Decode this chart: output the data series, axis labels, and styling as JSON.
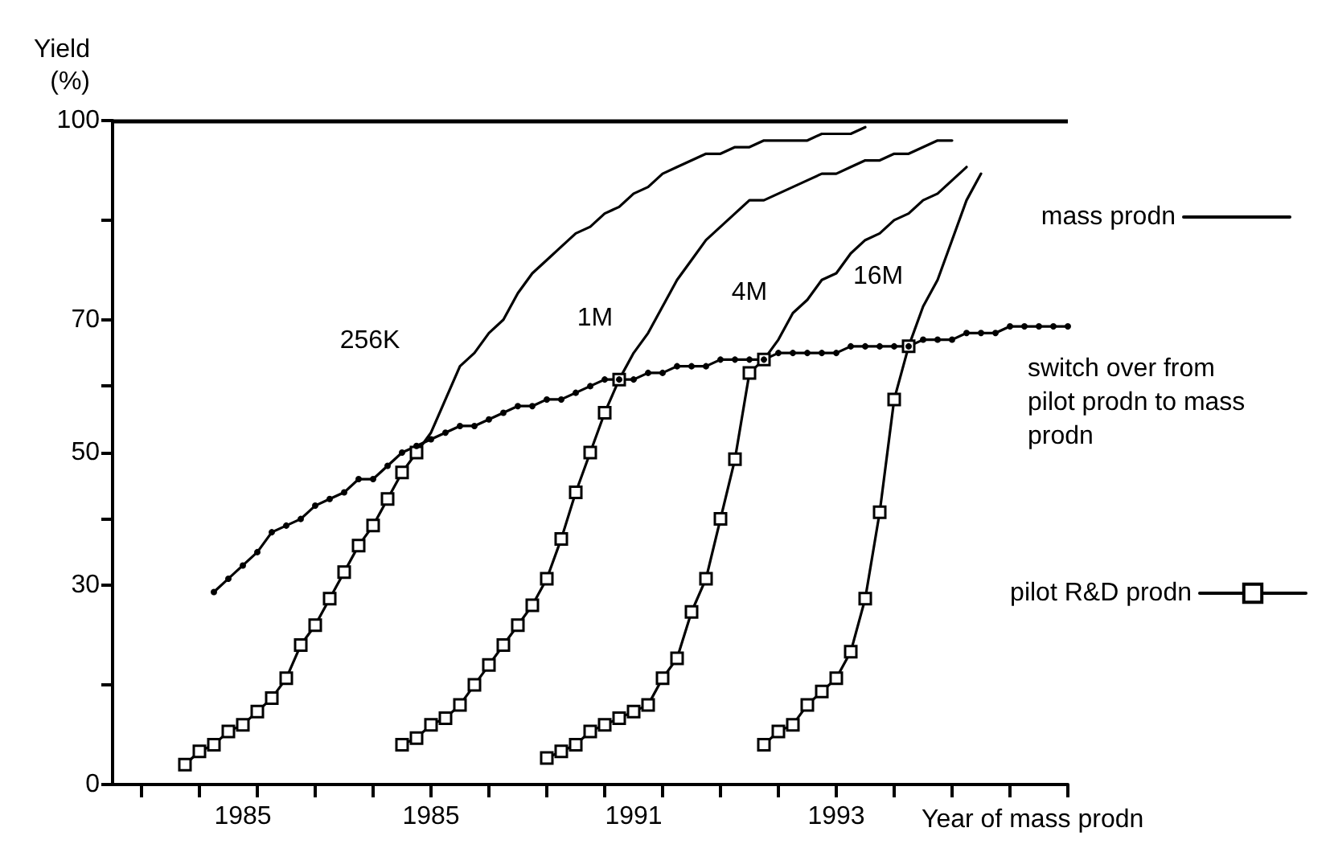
{
  "chart_data": {
    "type": "line",
    "ylabel": "Yield (%)",
    "xlabel": "Year of mass prodn",
    "legend": "right",
    "categories": [
      null,
      null,
      null,
      null,
      null,
      null,
      null,
      null,
      null,
      "1985",
      null,
      null,
      null,
      null,
      null,
      null,
      null,
      null,
      null,
      null,
      null,
      null,
      "1985",
      null,
      null,
      null,
      null,
      null,
      null,
      null,
      null,
      null,
      null,
      null,
      null,
      null,
      "1991",
      null,
      null,
      null,
      null,
      null,
      null,
      null,
      null,
      null,
      null,
      null,
      null,
      null,
      "1993",
      null,
      null,
      null,
      null,
      null,
      null,
      null,
      null,
      null,
      null,
      null,
      null,
      null,
      null,
      null,
      null
    ],
    "ylim": [
      0,
      100
    ],
    "yticks": [
      0,
      {
        "value": 15,
        "label": null
      },
      30,
      {
        "value": 40,
        "label": null
      },
      50,
      {
        "value": 60,
        "label": null
      },
      70,
      {
        "value": 85,
        "label": null
      },
      100
    ],
    "ref_lines": [
      {
        "axis": "y",
        "value": 100
      }
    ],
    "annotations": [
      "256K",
      "1M",
      "4M",
      "16M"
    ],
    "series": [
      {
        "name": "mass prodn",
        "color": "#000000",
        "marker": "none",
        "values": [
          null,
          null,
          null,
          null,
          null,
          null,
          null,
          null,
          null,
          null,
          null,
          null,
          null,
          null,
          null,
          null,
          null,
          null,
          null,
          null,
          null,
          50,
          53,
          58,
          63,
          65,
          68,
          70,
          74,
          77,
          79,
          81,
          83,
          84,
          86,
          87,
          89,
          90,
          92,
          93,
          94,
          95,
          95,
          96,
          96,
          97,
          97,
          97,
          97,
          98,
          98,
          98,
          99,
          null,
          null,
          null,
          null,
          null,
          null,
          null,
          null,
          null,
          null,
          null,
          null,
          null,
          null
        ]
      },
      {
        "color": "#000000",
        "marker": "none",
        "values": [
          null,
          null,
          null,
          null,
          null,
          null,
          null,
          null,
          null,
          null,
          null,
          null,
          null,
          null,
          null,
          null,
          null,
          null,
          null,
          null,
          null,
          null,
          null,
          null,
          null,
          null,
          null,
          null,
          null,
          null,
          null,
          null,
          null,
          null,
          null,
          61,
          65,
          68,
          72,
          76,
          79,
          82,
          84,
          86,
          88,
          88,
          89,
          90,
          91,
          92,
          92,
          93,
          94,
          94,
          95,
          95,
          96,
          97,
          97,
          null,
          null,
          null,
          null,
          null,
          null,
          null,
          null
        ]
      },
      {
        "color": "#000000",
        "marker": "none",
        "values": [
          null,
          null,
          null,
          null,
          null,
          null,
          null,
          null,
          null,
          null,
          null,
          null,
          null,
          null,
          null,
          null,
          null,
          null,
          null,
          null,
          null,
          null,
          null,
          null,
          null,
          null,
          null,
          null,
          null,
          null,
          null,
          null,
          null,
          null,
          null,
          null,
          null,
          null,
          null,
          null,
          null,
          null,
          null,
          null,
          null,
          64,
          67,
          71,
          73,
          76,
          77,
          80,
          82,
          83,
          85,
          86,
          88,
          89,
          91,
          93,
          null,
          null,
          null,
          null,
          null,
          null,
          null
        ]
      },
      {
        "color": "#000000",
        "marker": "none",
        "values": [
          null,
          null,
          null,
          null,
          null,
          null,
          null,
          null,
          null,
          null,
          null,
          null,
          null,
          null,
          null,
          null,
          null,
          null,
          null,
          null,
          null,
          null,
          null,
          null,
          null,
          null,
          null,
          null,
          null,
          null,
          null,
          null,
          null,
          null,
          null,
          null,
          null,
          null,
          null,
          null,
          null,
          null,
          null,
          null,
          null,
          null,
          null,
          null,
          null,
          null,
          null,
          null,
          null,
          null,
          null,
          66,
          72,
          76,
          82,
          88,
          92,
          null,
          null,
          null,
          null,
          null,
          null
        ]
      },
      {
        "name": "pilot R&D prodn",
        "color": "#000000",
        "marker": "square",
        "values": [
          null,
          null,
          null,
          null,
          null,
          3,
          5,
          6,
          8,
          9,
          11,
          13,
          16,
          21,
          24,
          28,
          32,
          36,
          39,
          43,
          47,
          50,
          null,
          null,
          null,
          null,
          null,
          null,
          null,
          null,
          null,
          null,
          null,
          null,
          null,
          null,
          null,
          null,
          null,
          null,
          null,
          null,
          null,
          null,
          null,
          null,
          null,
          null,
          null,
          null,
          null,
          null,
          null,
          null,
          null,
          null,
          null,
          null,
          null,
          null,
          null,
          null,
          null,
          null,
          null,
          null,
          null
        ]
      },
      {
        "color": "#000000",
        "marker": "square",
        "values": [
          null,
          null,
          null,
          null,
          null,
          null,
          null,
          null,
          null,
          null,
          null,
          null,
          null,
          null,
          null,
          null,
          null,
          null,
          null,
          null,
          6,
          7,
          9,
          10,
          12,
          15,
          18,
          21,
          24,
          27,
          31,
          37,
          44,
          50,
          56,
          61,
          null,
          null,
          null,
          null,
          null,
          null,
          null,
          null,
          null,
          null,
          null,
          null,
          null,
          null,
          null,
          null,
          null,
          null,
          null,
          null,
          null,
          null,
          null,
          null,
          null,
          null,
          null,
          null,
          null,
          null,
          null
        ]
      },
      {
        "color": "#000000",
        "marker": "square",
        "values": [
          null,
          null,
          null,
          null,
          null,
          null,
          null,
          null,
          null,
          null,
          null,
          null,
          null,
          null,
          null,
          null,
          null,
          null,
          null,
          null,
          null,
          null,
          null,
          null,
          null,
          null,
          null,
          null,
          null,
          null,
          4,
          5,
          6,
          8,
          9,
          10,
          11,
          12,
          16,
          19,
          26,
          31,
          40,
          49,
          62,
          64,
          null,
          null,
          null,
          null,
          null,
          null,
          null,
          null,
          null,
          null,
          null,
          null,
          null,
          null,
          null,
          null,
          null,
          null,
          null,
          null,
          null
        ]
      },
      {
        "color": "#000000",
        "marker": "square",
        "values": [
          null,
          null,
          null,
          null,
          null,
          null,
          null,
          null,
          null,
          null,
          null,
          null,
          null,
          null,
          null,
          null,
          null,
          null,
          null,
          null,
          null,
          null,
          null,
          null,
          null,
          null,
          null,
          null,
          null,
          null,
          null,
          null,
          null,
          null,
          null,
          null,
          null,
          null,
          null,
          null,
          null,
          null,
          null,
          null,
          null,
          6,
          8,
          9,
          12,
          14,
          16,
          20,
          28,
          41,
          58,
          66,
          null,
          null,
          null,
          null,
          null,
          null,
          null,
          null,
          null,
          null,
          null
        ]
      },
      {
        "name": "switch over from pilot prodn to mass prodn",
        "color": "#000000",
        "marker": "circle",
        "values": [
          null,
          null,
          null,
          null,
          null,
          null,
          null,
          29,
          31,
          33,
          35,
          38,
          39,
          40,
          42,
          43,
          44,
          46,
          46,
          48,
          50,
          51,
          52,
          53,
          54,
          54,
          55,
          56,
          57,
          57,
          58,
          58,
          59,
          60,
          61,
          61,
          61,
          62,
          62,
          63,
          63,
          63,
          64,
          64,
          64,
          64,
          65,
          65,
          65,
          65,
          65,
          66,
          66,
          66,
          66,
          66,
          67,
          67,
          67,
          68,
          68,
          68,
          69,
          69,
          69,
          69,
          69
        ]
      }
    ]
  }
}
